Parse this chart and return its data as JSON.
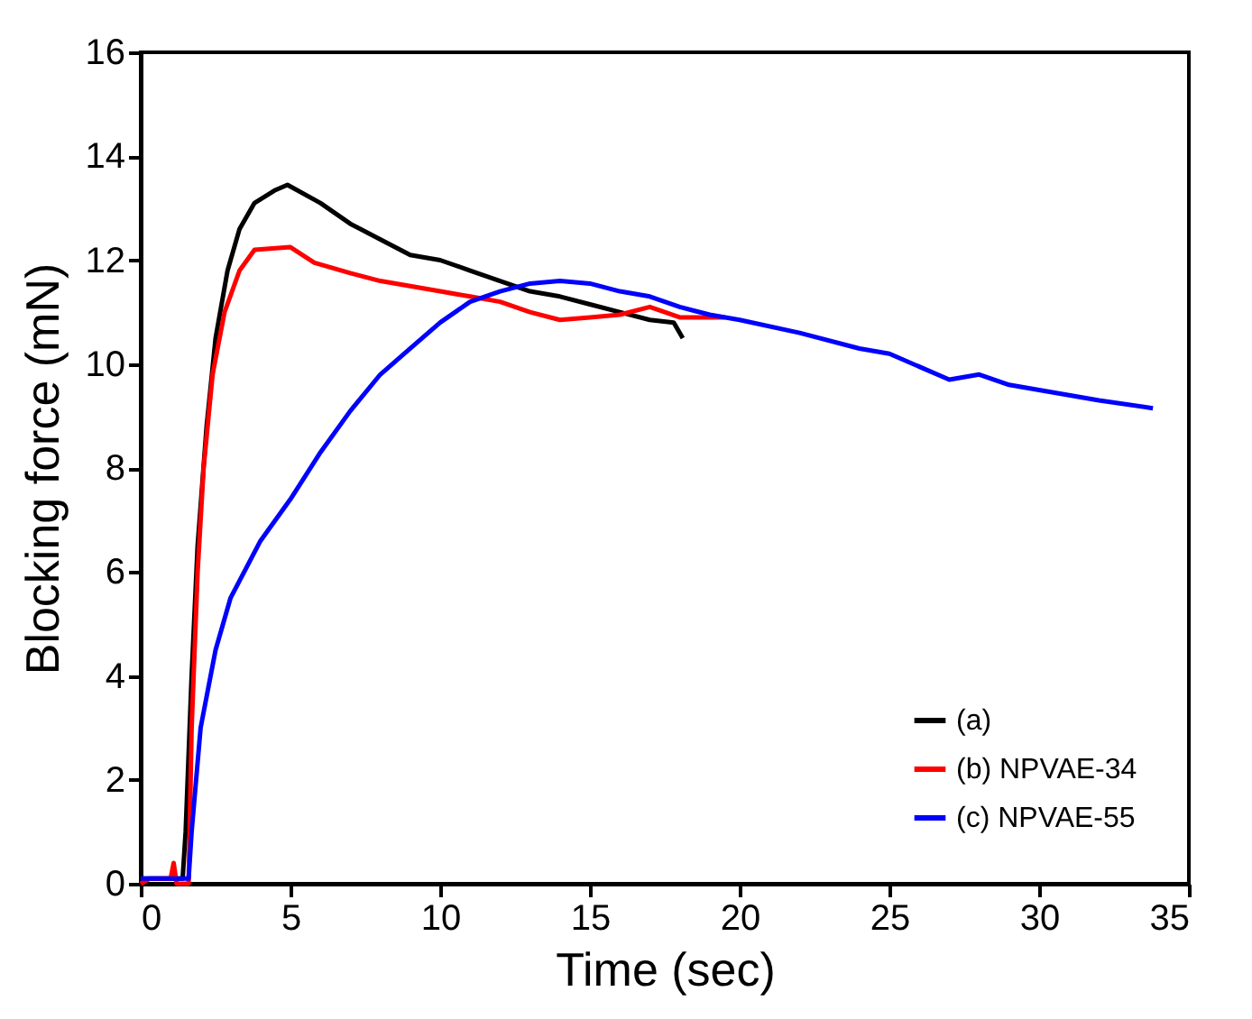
{
  "chart_data": {
    "type": "line",
    "xlabel": "Time (sec)",
    "ylabel": "Blocking force (mN)",
    "xlim": [
      0,
      35
    ],
    "xticks": [
      0,
      5,
      10,
      15,
      20,
      25,
      30,
      35
    ],
    "ylim": [
      0,
      16
    ],
    "yticks": [
      0,
      2,
      4,
      6,
      8,
      10,
      12,
      14,
      16
    ],
    "grid": false,
    "legend": "bottom right",
    "marker": "none",
    "line_style": "solid",
    "series": [
      {
        "name": "(a)",
        "color": "#000000",
        "x": [
          0,
          1.4,
          1.5,
          1.7,
          1.9,
          2.2,
          2.5,
          2.9,
          3.3,
          3.8,
          4.5,
          4.9,
          6,
          7,
          8,
          9,
          10,
          11,
          12,
          13,
          14,
          15,
          16,
          17,
          17.8,
          18.1
        ],
        "values": [
          0.1,
          0.1,
          1,
          4,
          6.5,
          8.8,
          10.5,
          11.8,
          12.6,
          13.1,
          13.35,
          13.45,
          13.1,
          12.7,
          12.4,
          12.1,
          12,
          11.8,
          11.6,
          11.4,
          11.3,
          11.15,
          11,
          10.85,
          10.8,
          10.5
        ]
      },
      {
        "name": "(b) NPVAE-34",
        "color": "#ff0000",
        "x": [
          0,
          0.3,
          1,
          1.1,
          1.2,
          1.6,
          1.7,
          1.9,
          2.1,
          2.4,
          2.8,
          3.3,
          3.8,
          5,
          5.8,
          7,
          8,
          9,
          10,
          11,
          12,
          13,
          14,
          15,
          16,
          17,
          18,
          19.5
        ],
        "values": [
          0,
          0.1,
          0.1,
          0.4,
          0,
          0,
          3,
          6,
          8,
          9.8,
          11,
          11.8,
          12.2,
          12.25,
          11.95,
          11.75,
          11.6,
          11.5,
          11.4,
          11.3,
          11.2,
          11,
          10.85,
          10.9,
          10.95,
          11.1,
          10.9,
          10.9
        ]
      },
      {
        "name": "(c) NPVAE-55",
        "color": "#0000ff",
        "x": [
          0,
          1.6,
          1.7,
          2,
          2.5,
          3,
          4,
          5,
          6,
          7,
          8,
          9,
          10,
          11,
          12,
          13,
          14,
          15,
          16,
          17,
          18,
          19,
          20,
          22,
          24,
          25,
          26,
          27,
          28,
          29,
          30,
          32,
          33.8
        ],
        "values": [
          0.1,
          0.1,
          1,
          3,
          4.5,
          5.5,
          6.6,
          7.4,
          8.3,
          9.1,
          9.8,
          10.3,
          10.8,
          11.2,
          11.4,
          11.55,
          11.6,
          11.55,
          11.4,
          11.3,
          11.1,
          10.95,
          10.85,
          10.6,
          10.3,
          10.2,
          9.95,
          9.7,
          9.8,
          9.6,
          9.5,
          9.3,
          9.15
        ]
      }
    ]
  }
}
